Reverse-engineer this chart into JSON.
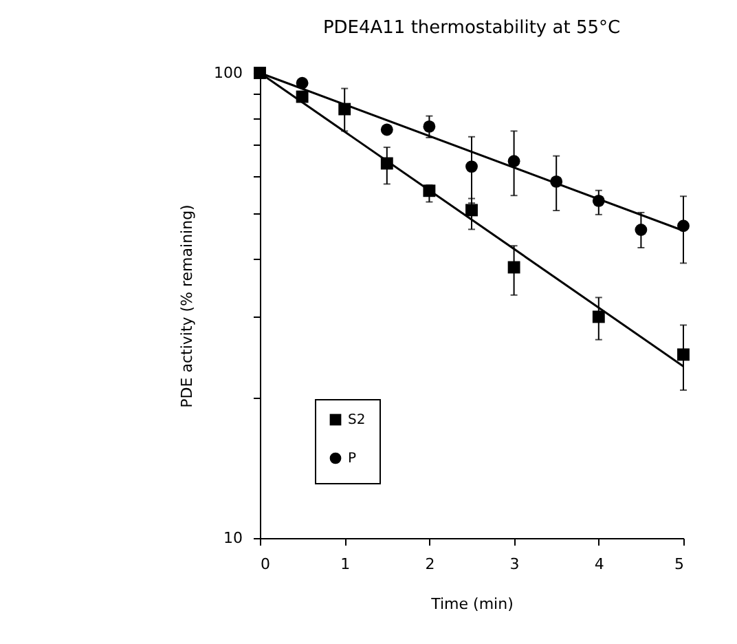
{
  "chart_data": {
    "type": "scatter",
    "title": "PDE4A11 thermostability at 55°C",
    "xlabel": "Time (min)",
    "ylabel": "PDE activity (% remaining)",
    "log": "y",
    "xlim": [
      0,
      5
    ],
    "xticks": [
      0,
      1,
      2,
      3,
      4,
      5
    ],
    "ylim": [
      10,
      100
    ],
    "yticks": [
      10,
      {
        "value": 20,
        "label": null
      },
      {
        "value": 30,
        "label": null
      },
      {
        "value": 40,
        "label": null
      },
      {
        "value": 50,
        "label": null
      },
      {
        "value": 60,
        "label": null
      },
      {
        "value": 70,
        "label": null
      },
      {
        "value": 80,
        "label": null
      },
      {
        "value": 90,
        "label": null
      },
      100
    ],
    "grid": false,
    "legend": "bottom left",
    "series": [
      {
        "name": "S2",
        "color": "#000000",
        "marker": "square",
        "x": [
          0,
          0.5,
          1,
          1.5,
          2,
          2.5,
          3,
          4,
          5
        ],
        "values": [
          100,
          88.9,
          83.6,
          63.9,
          55.8,
          50.7,
          38.2,
          29.9,
          24.8
        ],
        "errors": [
          null,
          null,
          [
            75.0,
            92.6
          ],
          [
            57.7,
            69.2
          ],
          [
            52.8,
            57.4
          ],
          [
            46.1,
            53.7
          ],
          [
            33.3,
            42.5
          ],
          [
            26.7,
            32.9
          ],
          [
            20.8,
            28.7
          ]
        ]
      },
      {
        "name": "P",
        "color": "#000000",
        "marker": "circle",
        "x": [
          0.5,
          1.5,
          2,
          2.5,
          3,
          3.5,
          4,
          4.5,
          5
        ],
        "values": [
          95.1,
          75.5,
          76.7,
          62.9,
          64.6,
          58.4,
          53.1,
          46.0,
          46.9
        ],
        "errors": [
          null,
          null,
          [
            72.6,
            80.8
          ],
          [
            52.5,
            72.9
          ],
          [
            54.5,
            75.0
          ],
          [
            50.6,
            66.3
          ],
          [
            49.6,
            55.9
          ],
          [
            42.1,
            50.1
          ],
          [
            39.0,
            54.3
          ]
        ]
      },
      {
        "type": "line",
        "color": "#000000",
        "x": [
          0,
          5
        ],
        "values": [
          100,
          23.4
        ]
      },
      {
        "type": "line",
        "color": "#000000",
        "x": [
          0,
          5
        ],
        "values": [
          100,
          45.8
        ]
      }
    ]
  }
}
